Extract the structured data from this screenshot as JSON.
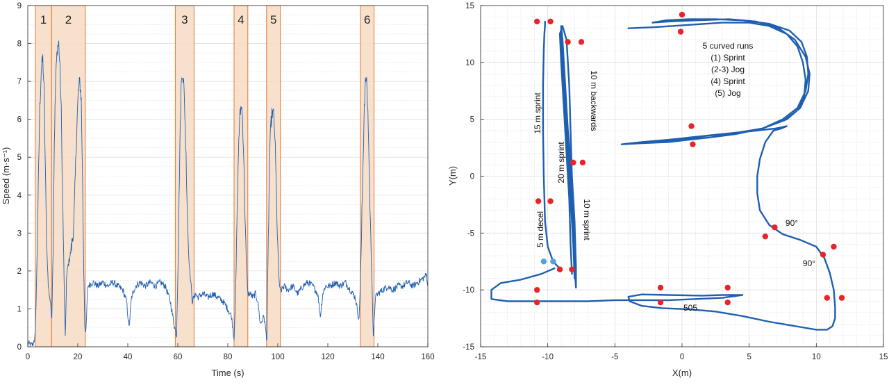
{
  "chart_data": [
    {
      "type": "line",
      "title": "",
      "xlabel": "Time (s)",
      "ylabel": "Speed (m·s⁻¹)",
      "xlim": [
        0,
        160
      ],
      "ylim": [
        0,
        9
      ],
      "xticks": [
        0,
        20,
        40,
        60,
        80,
        100,
        120,
        140,
        160
      ],
      "yticks": [
        0,
        1,
        2,
        3,
        4,
        5,
        6,
        7,
        8,
        9
      ],
      "series_color": "#1f5fb0",
      "segment_color": "#f6dcc4",
      "segment_edge_color": "#e8772e",
      "segments": [
        {
          "label": "1",
          "start": 3.0,
          "end": 9.5
        },
        {
          "label": "2",
          "start": 9.5,
          "end": 23.0
        },
        {
          "label": "3",
          "start": 59.0,
          "end": 66.5
        },
        {
          "label": "4",
          "start": 82.5,
          "end": 88.0
        },
        {
          "label": "5",
          "start": 95.5,
          "end": 101.0
        },
        {
          "label": "6",
          "start": 133.0,
          "end": 138.5
        }
      ],
      "series": [
        {
          "name": "speed",
          "x": [
            0,
            1,
            2,
            3,
            3.6,
            4.2,
            4.8,
            5.4,
            6.0,
            6.5,
            7.0,
            7.5,
            8.2,
            9.0,
            9.6,
            10.1,
            10.6,
            11.2,
            11.8,
            12.4,
            12.9,
            13.4,
            13.9,
            14.5,
            15.0,
            15.5,
            16.0,
            16.6,
            17.2,
            17.8,
            18.4,
            19.0,
            19.6,
            20.2,
            20.8,
            21.4,
            21.9,
            22.4,
            22.8,
            23.2,
            24,
            26,
            28,
            30,
            32,
            34,
            36,
            38,
            39.5,
            40.5,
            41.5,
            43,
            45,
            47,
            49,
            51,
            53,
            55,
            57,
            58.5,
            59.5,
            60.2,
            60.8,
            61.3,
            61.8,
            62.3,
            62.8,
            63.3,
            63.8,
            64.3,
            64.8,
            65.3,
            65.8,
            66.4,
            67,
            68,
            70,
            72,
            74,
            76,
            78,
            80,
            81.5,
            82.5,
            83.2,
            83.8,
            84.4,
            84.9,
            85.4,
            85.9,
            86.4,
            86.9,
            87.4,
            88,
            89,
            90,
            91,
            92,
            93,
            94.5,
            95.6,
            96.2,
            96.8,
            97.3,
            97.8,
            98.3,
            98.8,
            99.3,
            99.8,
            100.3,
            100.8,
            101.5,
            102.5,
            104,
            106,
            108,
            110,
            112,
            114,
            116,
            117,
            118,
            119,
            121,
            123,
            125,
            127,
            129,
            131,
            132.5,
            133.3,
            134.0,
            134.6,
            135.2,
            135.7,
            136.2,
            136.7,
            137.2,
            137.7,
            138.2,
            139.0,
            140,
            142,
            144,
            146,
            148,
            150,
            152,
            154,
            156,
            158,
            159.5,
            160
          ],
          "y": [
            0.1,
            0.05,
            0.05,
            0.3,
            2.0,
            4.2,
            6.3,
            7.3,
            7.6,
            6.8,
            4.8,
            2.8,
            1.6,
            1.2,
            0.8,
            2.5,
            5.4,
            7.1,
            7.9,
            8.0,
            7.3,
            6.2,
            4.1,
            1.8,
            0.2,
            1.8,
            2.1,
            2.3,
            2.5,
            2.8,
            3.2,
            4.5,
            5.8,
            6.7,
            7.0,
            6.5,
            4.5,
            2.0,
            0.6,
            0.3,
            1.6,
            1.7,
            1.6,
            1.7,
            1.6,
            1.7,
            1.6,
            1.5,
            1.2,
            0.5,
            1.3,
            1.6,
            1.7,
            1.6,
            1.7,
            1.6,
            1.7,
            1.6,
            1.2,
            0.6,
            0.3,
            2.5,
            5.2,
            6.8,
            7.3,
            7.0,
            6.2,
            5.0,
            3.6,
            2.5,
            2.0,
            1.6,
            1.2,
            1.3,
            1.4,
            1.3,
            1.4,
            1.3,
            1.4,
            1.3,
            1.2,
            1.0,
            0.8,
            0.2,
            1.6,
            3.8,
            5.5,
            6.1,
            6.4,
            6.0,
            5.0,
            3.5,
            2.2,
            1.4,
            1.4,
            1.3,
            1.4,
            1.2,
            0.6,
            0.8,
            0.2,
            2.8,
            5.2,
            5.9,
            6.2,
            6.1,
            5.6,
            4.4,
            3.0,
            2.0,
            1.5,
            1.5,
            1.6,
            1.5,
            1.6,
            1.4,
            1.6,
            1.7,
            1.6,
            1.4,
            0.8,
            1.4,
            1.6,
            1.6,
            1.7,
            1.6,
            1.7,
            1.5,
            1.3,
            0.7,
            2.4,
            4.6,
            6.4,
            7.1,
            6.8,
            5.8,
            4.2,
            2.8,
            1.7,
            0.2,
            1.3,
            1.4,
            1.5,
            1.6,
            1.5,
            1.6,
            1.6,
            1.7,
            1.6,
            1.7,
            1.8,
            1.9,
            1.6
          ]
        }
      ]
    },
    {
      "type": "line",
      "title": "",
      "xlabel": "X(m)",
      "ylabel": "Y(m)",
      "xlim": [
        -15,
        15
      ],
      "ylim": [
        -15,
        15
      ],
      "xticks": [
        -15,
        -10,
        -5,
        0,
        5,
        10,
        15
      ],
      "yticks": [
        -15,
        -10,
        -5,
        0,
        5,
        10,
        15
      ],
      "path_color": "#1f5fb0",
      "marker_color": "#e8242b",
      "start_marker_color": "#4fa3e0",
      "paths": [
        {
          "name": "15 m sprint",
          "x": [
            -9.2,
            -9.6,
            -10.0,
            -10.2,
            -10.3,
            -10.35,
            -10.35,
            -10.3,
            -10.25,
            -10.2,
            -10.2
          ],
          "y": [
            -8.0,
            -7.5,
            -6.2,
            -4.0,
            0.0,
            4.0,
            8.0,
            11.0,
            12.5,
            13.3,
            13.6
          ]
        },
        {
          "name": "10 m backwards / 20 m sprint / 10 m sprint / 5 m decel",
          "x": [
            -8.2,
            -8.3,
            -8.4,
            -8.6,
            -8.8,
            -9.0,
            -9.1,
            -8.9,
            -8.6,
            -8.4,
            -8.3,
            -8.2,
            -8.1,
            -8.0,
            -8.0,
            -8.1,
            -8.3,
            -8.5,
            -8.7,
            -8.9,
            -9.0,
            -9.0,
            -8.9,
            -8.7,
            -8.5,
            -8.3,
            -8.1,
            -8.0,
            -7.9,
            -7.9,
            -8.0,
            -8.2,
            -8.5,
            -8.8,
            -9.0,
            -9.1,
            -9.0,
            -8.8,
            -8.6,
            -8.4,
            -8.3,
            -8.2
          ],
          "y": [
            -8.5,
            -6.0,
            -2.0,
            2.0,
            6.0,
            10.0,
            12.5,
            13.2,
            12.0,
            8.0,
            4.0,
            0.0,
            -4.0,
            -7.5,
            -9.0,
            -6.0,
            -2.0,
            2.0,
            6.0,
            10.0,
            13.0,
            13.2,
            12.0,
            8.0,
            4.0,
            0.0,
            -4.0,
            -8.0,
            -9.8,
            -8.0,
            -4.0,
            0.0,
            4.0,
            8.0,
            11.5,
            12.5,
            10.0,
            6.0,
            2.0,
            -2.0,
            -6.0,
            -8.6
          ]
        },
        {
          "name": "5 curved runs",
          "x": [
            -4.0,
            -2.0,
            0.5,
            3.0,
            5.0,
            6.5,
            7.8,
            8.6,
            9.0,
            9.2,
            9.1,
            8.6,
            7.6,
            6.0,
            4.0,
            2.0,
            0.5,
            -1.0,
            -3.0,
            -4.5,
            -3.0,
            -1.0,
            1.5,
            4.0,
            6.0,
            7.5,
            8.6,
            9.2,
            9.4,
            9.3,
            8.9,
            8.0,
            6.5,
            4.5,
            2.5,
            0.5,
            -1.2,
            -2.2,
            -1.0,
            1.0,
            3.5,
            5.5,
            7.2,
            8.4,
            9.2,
            9.5,
            9.4,
            8.8,
            7.8,
            6.0,
            4.0,
            2.0,
            0.0,
            -2.0,
            -3.0,
            -1.5,
            0.5,
            3.0,
            5.5,
            7.0,
            7.8,
            7.4,
            6.8
          ],
          "y": [
            13.0,
            13.1,
            13.3,
            13.5,
            13.5,
            13.2,
            12.5,
            11.4,
            10.0,
            8.5,
            7.0,
            5.8,
            4.9,
            4.2,
            3.7,
            3.4,
            3.2,
            3.0,
            2.9,
            2.8,
            3.0,
            3.2,
            3.5,
            3.8,
            4.2,
            5.0,
            6.0,
            7.5,
            9.0,
            10.5,
            11.8,
            12.8,
            13.4,
            13.7,
            13.8,
            13.8,
            13.7,
            13.5,
            13.6,
            13.7,
            13.8,
            13.6,
            13.0,
            12.0,
            10.5,
            9.0,
            7.5,
            6.0,
            5.0,
            4.2,
            3.7,
            3.4,
            3.2,
            3.0,
            2.9,
            3.1,
            3.4,
            3.7,
            4.0,
            4.2,
            4.4,
            4.2,
            4.0
          ]
        },
        {
          "name": "90° turns and 505",
          "x": [
            6.8,
            6.2,
            5.8,
            5.6,
            5.6,
            5.8,
            6.5,
            7.5,
            8.8,
            10.0,
            10.6,
            11.0,
            11.3,
            11.4,
            11.4,
            11.2,
            10.8,
            10.0,
            8.5,
            6.5,
            4.5,
            2.5,
            0.5,
            -1.5,
            -3.0,
            -3.9,
            -4.0,
            -3.0,
            -1.0,
            1.5,
            3.0,
            4.5,
            3.0,
            1.0,
            -1.0,
            -3.0,
            -5.0,
            -7.0,
            -9.0,
            -11.0,
            -13.0,
            -14.2,
            -14.2,
            -13.5,
            -12.0,
            -10.5,
            -9.5
          ],
          "y": [
            4.0,
            3.0,
            1.5,
            0.0,
            -1.5,
            -3.0,
            -4.3,
            -5.1,
            -5.6,
            -6.2,
            -7.2,
            -8.5,
            -10.0,
            -11.5,
            -12.5,
            -13.2,
            -13.5,
            -13.5,
            -13.2,
            -12.8,
            -12.3,
            -11.9,
            -11.7,
            -11.6,
            -11.4,
            -11.0,
            -10.6,
            -10.4,
            -10.45,
            -10.5,
            -10.45,
            -10.45,
            -10.7,
            -10.8,
            -10.9,
            -10.9,
            -10.9,
            -11.0,
            -11.0,
            -11.0,
            -11.0,
            -10.8,
            -10.0,
            -9.4,
            -9.1,
            -8.6,
            -8.1
          ]
        }
      ],
      "markers": [
        {
          "x": -10.8,
          "y": 13.6
        },
        {
          "x": -9.8,
          "y": 13.6
        },
        {
          "x": -8.5,
          "y": 11.8
        },
        {
          "x": -7.5,
          "y": 11.8
        },
        {
          "x": -8.1,
          "y": 1.2
        },
        {
          "x": -7.4,
          "y": 1.2
        },
        {
          "x": -10.7,
          "y": -2.2
        },
        {
          "x": -9.8,
          "y": -2.2
        },
        {
          "x": -9.1,
          "y": -8.2
        },
        {
          "x": -8.2,
          "y": -8.2
        },
        {
          "x": -10.8,
          "y": -10.0
        },
        {
          "x": -10.8,
          "y": -11.1
        },
        {
          "x": 0.0,
          "y": 14.2
        },
        {
          "x": -0.1,
          "y": 12.7
        },
        {
          "x": 0.7,
          "y": 4.4
        },
        {
          "x": 0.8,
          "y": 2.8
        },
        {
          "x": -1.6,
          "y": -9.8
        },
        {
          "x": -1.6,
          "y": -11.1
        },
        {
          "x": 3.4,
          "y": -9.8
        },
        {
          "x": 3.4,
          "y": -11.1
        },
        {
          "x": 6.9,
          "y": -4.5
        },
        {
          "x": 6.2,
          "y": -5.3
        },
        {
          "x": 10.5,
          "y": -6.9
        },
        {
          "x": 11.3,
          "y": -6.2
        },
        {
          "x": 10.8,
          "y": -10.7
        },
        {
          "x": 11.9,
          "y": -10.7
        }
      ],
      "start_markers": [
        {
          "x": -10.3,
          "y": -7.5
        },
        {
          "x": -9.6,
          "y": -7.5
        }
      ],
      "annotations": {
        "curved_runs": [
          "5 curved runs",
          "(1) Sprint",
          "(2-3) Jog",
          "(4) Sprint",
          "(5) Jog"
        ],
        "sprint_15": "15 m sprint",
        "backwards_10": "10 m backwards",
        "sprint_20": "20 m sprint",
        "sprint_10": "10 m sprint",
        "decel_5": "5 m decel",
        "turn_1": "90°",
        "turn_2": "90°",
        "label_505": "505"
      }
    }
  ]
}
